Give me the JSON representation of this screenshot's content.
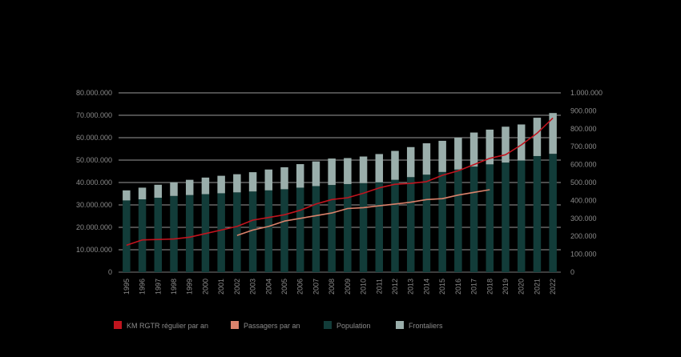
{
  "chart_data": {
    "type": "bar",
    "categories": [
      "1995",
      "1996",
      "1997",
      "1998",
      "1999",
      "2000",
      "2001",
      "2002",
      "2003",
      "2004",
      "2005",
      "2006",
      "2007",
      "2008",
      "2009",
      "2010",
      "2011",
      "2012",
      "2013",
      "2014",
      "2015",
      "2016",
      "2017",
      "2018",
      "2019",
      "2020",
      "2021",
      "2022"
    ],
    "left_axis": {
      "ylim": [
        0,
        80000000
      ],
      "ticks": [
        "0",
        "10.000.000",
        "20.000.000",
        "30.000.000",
        "40.000.000",
        "50.000.000",
        "60.000.000",
        "70.000.000",
        "80.000.000"
      ]
    },
    "right_axis": {
      "ylim": [
        0,
        1000000
      ],
      "ticks": [
        "0",
        "100.000",
        "200.000",
        "300.000",
        "400.000",
        "500.000",
        "600.000",
        "700.000",
        "800.000",
        "900.000",
        "1.000.000"
      ]
    },
    "grid": true,
    "legend_position": "bottom",
    "series": [
      {
        "name": "KM RGTR régulier par an",
        "type": "line",
        "axis": "right",
        "color": "#c0141e",
        "values": [
          150000,
          180000,
          182000,
          185000,
          195000,
          215000,
          235000,
          255000,
          290000,
          305000,
          320000,
          345000,
          380000,
          405000,
          415000,
          440000,
          470000,
          490000,
          495000,
          505000,
          540000,
          565000,
          600000,
          635000,
          655000,
          710000,
          775000,
          860000
        ]
      },
      {
        "name": "Passagers par an",
        "type": "line",
        "axis": "right",
        "color": "#d9826b",
        "values": [
          null,
          null,
          null,
          null,
          null,
          null,
          null,
          205000,
          235000,
          255000,
          285000,
          300000,
          315000,
          330000,
          355000,
          360000,
          370000,
          380000,
          390000,
          405000,
          410000,
          430000,
          445000,
          460000,
          null,
          null,
          null,
          null
        ]
      },
      {
        "name": "Population",
        "type": "bar",
        "axis": "left",
        "color": "#123c39",
        "values": [
          32000000,
          32500000,
          33200000,
          34000000,
          34400000,
          34800000,
          35200000,
          35600000,
          36000000,
          36500000,
          37000000,
          37700000,
          38400000,
          38900000,
          39300000,
          39700000,
          40100000,
          41200000,
          42400000,
          43500000,
          44700000,
          45800000,
          47100000,
          48100000,
          48900000,
          49800000,
          51800000,
          52800000
        ]
      },
      {
        "name": "Frontaliers",
        "type": "bar",
        "axis": "left",
        "color": "#9aaeab",
        "values": [
          4500000,
          5200000,
          5800000,
          6100000,
          6800000,
          7400000,
          7800000,
          8100000,
          8600000,
          9300000,
          9800000,
          10500000,
          11000000,
          11800000,
          11600000,
          11900000,
          12600000,
          12900000,
          13400000,
          14000000,
          13900000,
          14200000,
          15200000,
          15500000,
          16000000,
          16100000,
          17100000,
          18200000
        ]
      }
    ]
  }
}
